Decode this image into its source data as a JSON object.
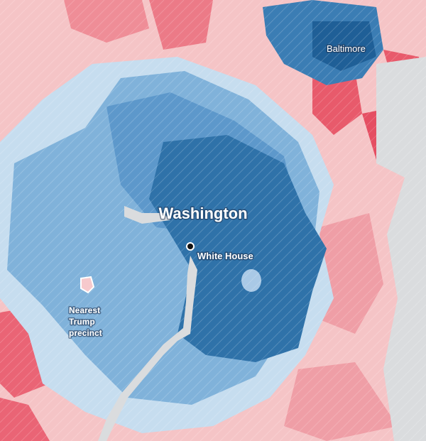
{
  "labels": {
    "city": "Washington",
    "landmark": "White House",
    "north_city": "Baltimore",
    "precinct": [
      "Nearest",
      "Trump",
      "precinct"
    ]
  }
}
